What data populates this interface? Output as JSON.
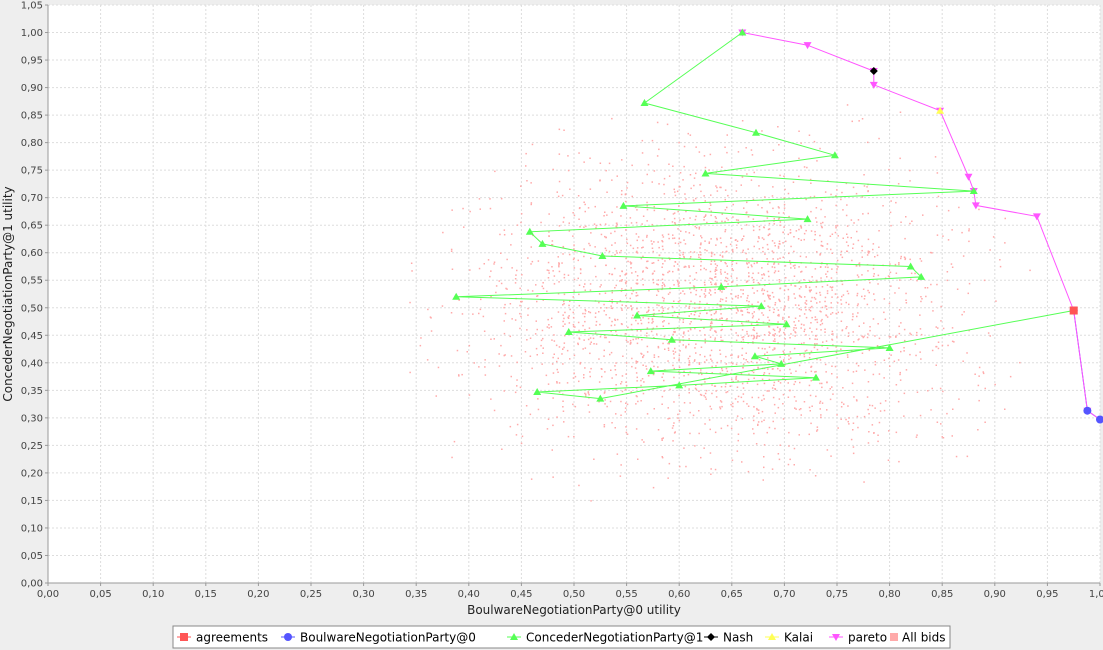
{
  "chart_data": {
    "type": "scatter",
    "xlabel": "BoulwareNegotiationParty@0 utility",
    "ylabel": "ConcederNegotiationParty@1 utility",
    "xlim": [
      0,
      1.0
    ],
    "ylim": [
      0,
      1.05
    ],
    "x_ticks": [
      "0,00",
      "0,05",
      "0,10",
      "0,15",
      "0,20",
      "0,25",
      "0,30",
      "0,35",
      "0,40",
      "0,45",
      "0,50",
      "0,55",
      "0,60",
      "0,65",
      "0,70",
      "0,75",
      "0,80",
      "0,85",
      "0,90",
      "0,95",
      "1,00"
    ],
    "y_ticks": [
      "0,00",
      "0,05",
      "0,10",
      "0,15",
      "0,20",
      "0,25",
      "0,30",
      "0,35",
      "0,40",
      "0,45",
      "0,50",
      "0,55",
      "0,60",
      "0,65",
      "0,70",
      "0,75",
      "0,80",
      "0,85",
      "0,90",
      "0,95",
      "1,00",
      "1,05"
    ],
    "grid": true,
    "legend_position": "bottom",
    "series": [
      {
        "name": "agreements",
        "color": "#ff5555",
        "marker": "square",
        "lines": false,
        "points": [
          [
            0.975,
            0.495
          ]
        ]
      },
      {
        "name": "BoulwareNegotiationParty@0",
        "color": "#5555ff",
        "marker": "circle",
        "lines": true,
        "points": [
          [
            1.0,
            0.297
          ],
          [
            0.988,
            0.313
          ],
          [
            0.975,
            0.495
          ]
        ]
      },
      {
        "name": "ConcederNegotiationParty@1",
        "color": "#55ff55",
        "marker": "triangle-up",
        "lines": true,
        "points": [
          [
            0.66,
            1.0
          ],
          [
            0.567,
            0.872
          ],
          [
            0.673,
            0.818
          ],
          [
            0.748,
            0.777
          ],
          [
            0.625,
            0.744
          ],
          [
            0.88,
            0.712
          ],
          [
            0.547,
            0.685
          ],
          [
            0.722,
            0.661
          ],
          [
            0.458,
            0.638
          ],
          [
            0.47,
            0.616
          ],
          [
            0.527,
            0.594
          ],
          [
            0.82,
            0.575
          ],
          [
            0.83,
            0.556
          ],
          [
            0.64,
            0.538
          ],
          [
            0.388,
            0.52
          ],
          [
            0.678,
            0.503
          ],
          [
            0.56,
            0.486
          ],
          [
            0.702,
            0.47
          ],
          [
            0.495,
            0.456
          ],
          [
            0.593,
            0.442
          ],
          [
            0.8,
            0.427
          ],
          [
            0.672,
            0.412
          ],
          [
            0.697,
            0.398
          ],
          [
            0.573,
            0.385
          ],
          [
            0.73,
            0.373
          ],
          [
            0.6,
            0.359
          ],
          [
            0.465,
            0.347
          ],
          [
            0.525,
            0.335
          ],
          [
            0.975,
            0.495
          ]
        ]
      },
      {
        "name": "Nash",
        "color": "#000000",
        "marker": "diamond",
        "lines": false,
        "points": [
          [
            0.785,
            0.93
          ]
        ]
      },
      {
        "name": "Kalai",
        "color": "#ffff55",
        "marker": "triangle-up",
        "lines": false,
        "points": [
          [
            0.848,
            0.858
          ]
        ]
      },
      {
        "name": "pareto",
        "color": "#ff55ff",
        "marker": "triangle-down",
        "lines": true,
        "points": [
          [
            0.66,
            1.0
          ],
          [
            0.722,
            0.977
          ],
          [
            0.785,
            0.93
          ],
          [
            0.785,
            0.905
          ],
          [
            0.848,
            0.858
          ],
          [
            0.875,
            0.738
          ],
          [
            0.88,
            0.712
          ],
          [
            0.882,
            0.686
          ],
          [
            0.94,
            0.666
          ],
          [
            0.975,
            0.495
          ],
          [
            0.988,
            0.313
          ],
          [
            1.0,
            0.297
          ]
        ]
      },
      {
        "name": "All bids",
        "color": "#ffaaaa",
        "marker": "square",
        "lines": false,
        "scatter_cloud": true,
        "x_range": [
          0.31,
          0.97
        ],
        "y_range": [
          0.12,
          0.89
        ],
        "center": [
          0.62,
          0.5
        ],
        "count": 2600
      }
    ]
  }
}
